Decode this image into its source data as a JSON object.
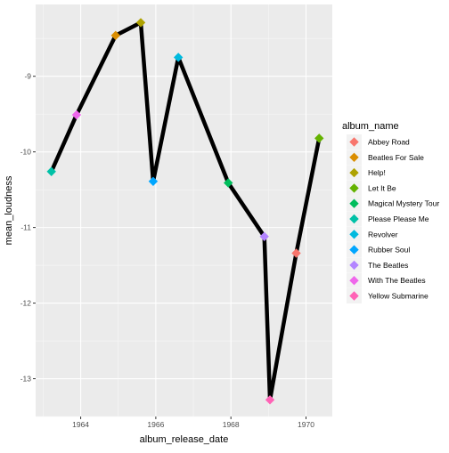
{
  "chart_data": {
    "type": "line",
    "xlabel": "album_release_date",
    "ylabel": "mean_loudness",
    "xlim": [
      1962.8,
      1970.7
    ],
    "ylim": [
      -13.5,
      -8.05
    ],
    "x_ticks": [
      1964,
      1966,
      1968,
      1970
    ],
    "y_ticks": [
      -13,
      -12,
      -11,
      -10,
      -9
    ],
    "x_tick_labels": [
      "1964",
      "1966",
      "1968",
      "1970"
    ],
    "y_tick_labels": [
      "-13",
      "-12",
      "-11",
      "-10",
      "-9"
    ],
    "grid": true,
    "legend_placement": "right",
    "legend": {
      "title": "album_name",
      "entries": [
        {
          "label": "Abbey Road",
          "color": "#F8766D"
        },
        {
          "label": "Beatles For Sale",
          "color": "#DB8E00"
        },
        {
          "label": "Help!",
          "color": "#AEA200"
        },
        {
          "label": "Let It Be",
          "color": "#64B200"
        },
        {
          "label": "Magical Mystery Tour",
          "color": "#00BD5C"
        },
        {
          "label": "Please Please Me",
          "color": "#00C1A7"
        },
        {
          "label": "Revolver",
          "color": "#00BADE"
        },
        {
          "label": "Rubber Soul",
          "color": "#00A6FF"
        },
        {
          "label": "The Beatles",
          "color": "#B385FF"
        },
        {
          "label": "With The Beatles",
          "color": "#EF67EB"
        },
        {
          "label": "Yellow Submarine",
          "color": "#FF63B6"
        }
      ]
    },
    "points": [
      {
        "album": "Please Please Me",
        "x": 1963.22,
        "y": -10.26
      },
      {
        "album": "With The Beatles",
        "x": 1963.89,
        "y": -9.51
      },
      {
        "album": "Beatles For Sale",
        "x": 1964.93,
        "y": -8.46
      },
      {
        "album": "Help!",
        "x": 1965.6,
        "y": -8.29
      },
      {
        "album": "Rubber Soul",
        "x": 1965.93,
        "y": -10.39
      },
      {
        "album": "Revolver",
        "x": 1966.6,
        "y": -8.75
      },
      {
        "album": "Magical Mystery Tour",
        "x": 1967.93,
        "y": -10.41
      },
      {
        "album": "The Beatles",
        "x": 1968.89,
        "y": -11.12
      },
      {
        "album": "Yellow Submarine",
        "x": 1969.04,
        "y": -13.28
      },
      {
        "album": "Abbey Road",
        "x": 1969.74,
        "y": -11.34
      },
      {
        "album": "Let It Be",
        "x": 1970.35,
        "y": -9.82
      }
    ]
  }
}
